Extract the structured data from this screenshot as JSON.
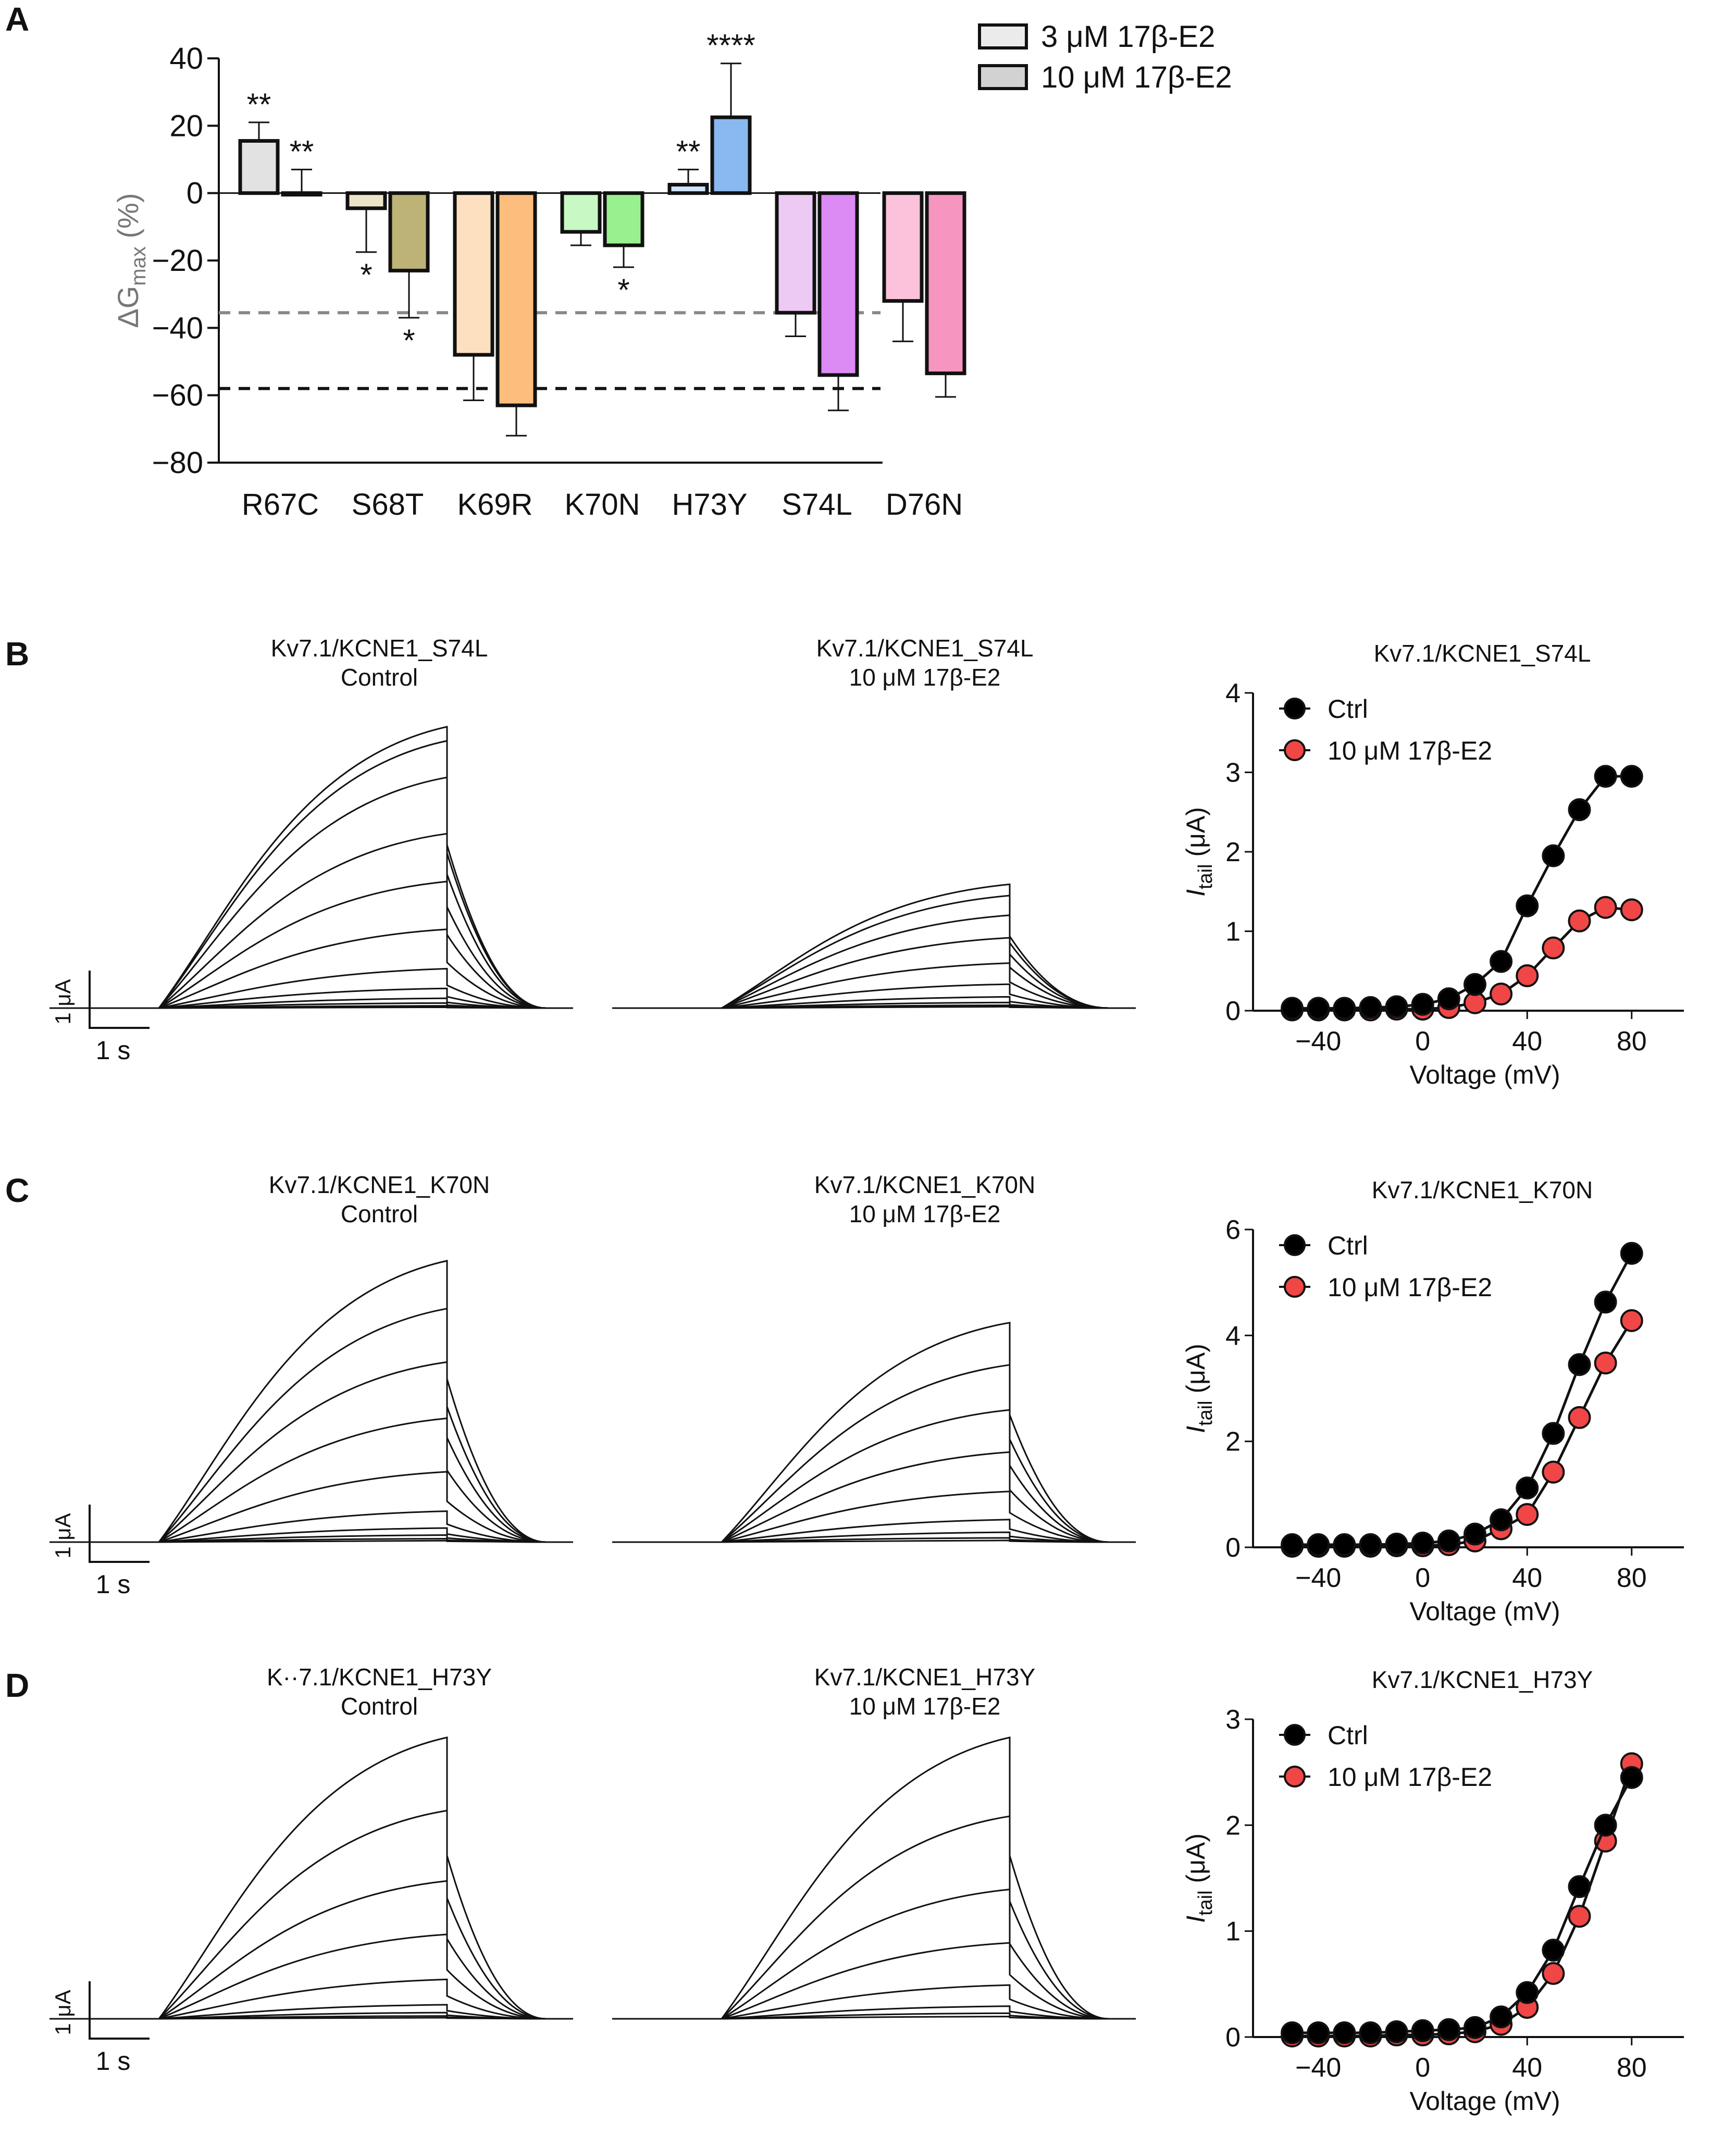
{
  "panel_letters": [
    "A",
    "B",
    "C",
    "D"
  ],
  "chart_data": [
    {
      "id": "A",
      "type": "bar",
      "ylabel": "ΔG",
      "ylabel_sub": "max",
      "ylabel_unit": "(%)",
      "ylim": [
        -80,
        40
      ],
      "yticks": [
        40,
        20,
        0,
        -20,
        -40,
        -60,
        -80
      ],
      "ytick_labels": [
        "40",
        "20",
        "0",
        "−20",
        "−40",
        "−60",
        "−80"
      ],
      "categories": [
        "R67C",
        "S68T",
        "K69R",
        "K70N",
        "H73Y",
        "S74L",
        "D76N"
      ],
      "legend": [
        "3 μM 17β-E2",
        "10 μM 17β-E2"
      ],
      "legend_position": "top-right",
      "series": [
        {
          "name": "3 μM 17β-E2",
          "values": [
            15.5,
            -4.5,
            -48,
            -11.5,
            2.5,
            -35.5,
            -32
          ],
          "errors": [
            5.5,
            13,
            13.5,
            4,
            4.5,
            7,
            12
          ],
          "colors": [
            "#e2e2e2",
            "#ece4c6",
            "#fde0c0",
            "#c8f8c4",
            "#cfe4f8",
            "#eccaf4",
            "#fcc2dc"
          ],
          "significance": [
            "**",
            "*",
            "",
            "",
            "**",
            "",
            ""
          ]
        },
        {
          "name": "10 μM 17β-E2",
          "values": [
            0,
            -23,
            -63,
            -15.5,
            22.5,
            -54,
            -53.5
          ],
          "errors": [
            7,
            14,
            9,
            6.5,
            16,
            10.5,
            7
          ],
          "colors": [
            "#d0d0d0",
            "#bdb377",
            "#fdbd7c",
            "#99f08e",
            "#8ab8f0",
            "#dc8af4",
            "#f696c0"
          ],
          "significance": [
            "**",
            "*",
            "",
            "*",
            "****",
            "",
            ""
          ]
        }
      ],
      "reference_lines": [
        {
          "value": -35.5,
          "color": "#888888",
          "style": "dashed"
        },
        {
          "value": -58,
          "color": "#111111",
          "style": "dashed"
        }
      ]
    },
    {
      "id": "B-IV",
      "type": "line",
      "title": "Kv7.1/KCNE1_S74L",
      "xlabel": "Voltage (mV)",
      "ylabel": "I",
      "ylabel_sub": "tail",
      "ylabel_unit": "(μA)",
      "xlim": [
        -55,
        100
      ],
      "ylim": [
        0,
        4
      ],
      "xticks": [
        -40,
        0,
        40,
        80
      ],
      "xtick_labels": [
        "−40",
        "0",
        "40",
        "80"
      ],
      "yticks": [
        0,
        1,
        2,
        3,
        4
      ],
      "legend_position": "top-left",
      "x": [
        -50,
        -40,
        -30,
        -20,
        -10,
        0,
        10,
        20,
        30,
        40,
        50,
        60,
        70,
        80
      ],
      "series": [
        {
          "name": "Ctrl",
          "color": "#000000",
          "values": [
            0.03,
            0.03,
            0.03,
            0.04,
            0.05,
            0.08,
            0.15,
            0.33,
            0.62,
            1.32,
            1.95,
            2.53,
            2.95,
            2.95
          ]
        },
        {
          "name": "10 μM 17β-E2",
          "color": "#f04646",
          "values": [
            0.01,
            0.01,
            0.01,
            0.01,
            0.02,
            0.02,
            0.04,
            0.1,
            0.21,
            0.44,
            0.79,
            1.13,
            1.3,
            1.27
          ]
        }
      ]
    },
    {
      "id": "C-IV",
      "type": "line",
      "title": "Kv7.1/KCNE1_K70N",
      "xlabel": "Voltage (mV)",
      "ylabel": "I",
      "ylabel_sub": "tail",
      "ylabel_unit": "(μA)",
      "xlim": [
        -55,
        100
      ],
      "ylim": [
        0,
        6
      ],
      "xticks": [
        -40,
        0,
        40,
        80
      ],
      "xtick_labels": [
        "−40",
        "0",
        "40",
        "80"
      ],
      "yticks": [
        0,
        2,
        4,
        6
      ],
      "legend_position": "top-left",
      "x": [
        -50,
        -40,
        -30,
        -20,
        -10,
        0,
        10,
        20,
        30,
        40,
        50,
        60,
        70,
        80
      ],
      "series": [
        {
          "name": "Ctrl",
          "color": "#000000",
          "values": [
            0.05,
            0.05,
            0.05,
            0.05,
            0.06,
            0.08,
            0.12,
            0.25,
            0.52,
            1.12,
            2.15,
            3.45,
            4.63,
            5.55
          ]
        },
        {
          "name": "10 μM 17β-E2",
          "color": "#f04646",
          "values": [
            0.02,
            0.02,
            0.02,
            0.02,
            0.03,
            0.03,
            0.05,
            0.12,
            0.35,
            0.62,
            1.42,
            2.45,
            3.48,
            4.28
          ]
        }
      ]
    },
    {
      "id": "D-IV",
      "type": "line",
      "title": "Kv7.1/KCNE1_H73Y",
      "xlabel": "Voltage (mV)",
      "ylabel": "I",
      "ylabel_sub": "tail",
      "ylabel_unit": "(μA)",
      "xlim": [
        -55,
        100
      ],
      "ylim": [
        0,
        3
      ],
      "xticks": [
        -40,
        0,
        40,
        80
      ],
      "xtick_labels": [
        "−40",
        "0",
        "40",
        "80"
      ],
      "yticks": [
        0,
        1,
        2,
        3
      ],
      "legend_position": "top-left",
      "x": [
        -50,
        -40,
        -30,
        -20,
        -10,
        0,
        10,
        20,
        30,
        40,
        50,
        60,
        70,
        80
      ],
      "series": [
        {
          "name": "Ctrl",
          "color": "#000000",
          "values": [
            0.04,
            0.04,
            0.04,
            0.04,
            0.05,
            0.06,
            0.07,
            0.09,
            0.19,
            0.42,
            0.82,
            1.42,
            2.0,
            2.45
          ]
        },
        {
          "name": "10 μM 17β-E2",
          "color": "#f04646",
          "values": [
            0.01,
            0.01,
            0.01,
            0.01,
            0.02,
            0.02,
            0.03,
            0.05,
            0.12,
            0.28,
            0.6,
            1.14,
            1.85,
            2.58
          ]
        }
      ]
    }
  ],
  "traces": [
    {
      "id": "B-ctrl",
      "title_line1": "Kv7.1/KCNE1_S74L",
      "title_line2": "Control",
      "relative_amplitudes": [
        1.0,
        0.95,
        0.82,
        0.62,
        0.45,
        0.28,
        0.14,
        0.07,
        0.035,
        0.018,
        0.008,
        0.003
      ],
      "scale_bar_y": "1 μA",
      "scale_bar_x": "1 s"
    },
    {
      "id": "B-e2",
      "title_line1": "Kv7.1/KCNE1_S74L",
      "title_line2": "10 μM 17β-E2",
      "relative_amplitudes": [
        0.44,
        0.4,
        0.33,
        0.25,
        0.16,
        0.085,
        0.04,
        0.02,
        0.01,
        0.005
      ]
    },
    {
      "id": "C-ctrl",
      "title_line1": "Kv7.1/KCNE1_K70N",
      "title_line2": "Control",
      "relative_amplitudes": [
        1.0,
        0.83,
        0.64,
        0.44,
        0.25,
        0.11,
        0.05,
        0.025,
        0.012,
        0.005
      ],
      "scale_bar_y": "1 μA",
      "scale_bar_x": "1 s"
    },
    {
      "id": "C-e2",
      "title_line1": "Kv7.1/KCNE1_K70N",
      "title_line2": "10 μM 17β-E2",
      "relative_amplitudes": [
        0.78,
        0.63,
        0.47,
        0.32,
        0.18,
        0.08,
        0.035,
        0.015,
        0.006
      ]
    },
    {
      "id": "D-ctrl",
      "title_line1": "K··7.1/KCNE1_H73Y",
      "title_line2": "Control",
      "relative_amplitudes": [
        1.0,
        0.74,
        0.49,
        0.3,
        0.14,
        0.05,
        0.022,
        0.01,
        0.004
      ],
      "scale_bar_y": "1 μA",
      "scale_bar_x": "1 s"
    },
    {
      "id": "D-e2",
      "title_line1": "Kv7.1/KCNE1_H73Y",
      "title_line2": "10 μM 17β-E2",
      "relative_amplitudes": [
        1.0,
        0.72,
        0.46,
        0.27,
        0.12,
        0.045,
        0.02,
        0.008
      ]
    }
  ]
}
